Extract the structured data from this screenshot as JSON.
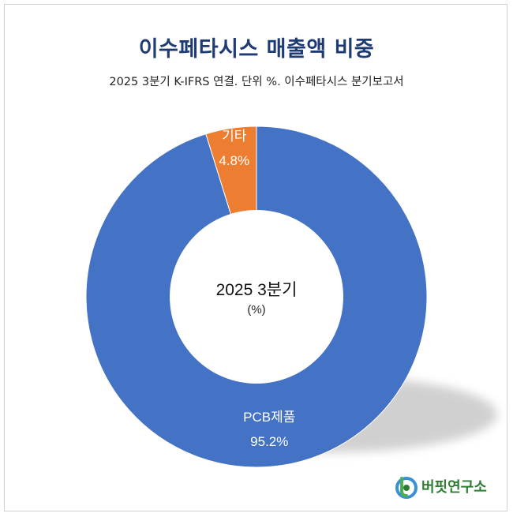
{
  "header": {
    "title": "이수페타시스 매출액 비중",
    "subtitle": "2025 3분기 K-IFRS 연결. 단위 %. 이수페타시스 분기보고서"
  },
  "center": {
    "line1": "2025 3분기",
    "line2": "(%)"
  },
  "logo": {
    "text": "버핏연구소"
  },
  "colors": {
    "pcb": "#4472c4",
    "other": "#ed7d31",
    "title": "#1f3b73"
  },
  "chart_data": {
    "type": "pie",
    "variant": "donut",
    "slices": [
      {
        "label": "PCB제품",
        "value": 95.2,
        "value_label": "95.2%",
        "color": "#4472c4"
      },
      {
        "label": "기타",
        "value": 4.8,
        "value_label": "4.8%",
        "color": "#ed7d31"
      }
    ]
  }
}
